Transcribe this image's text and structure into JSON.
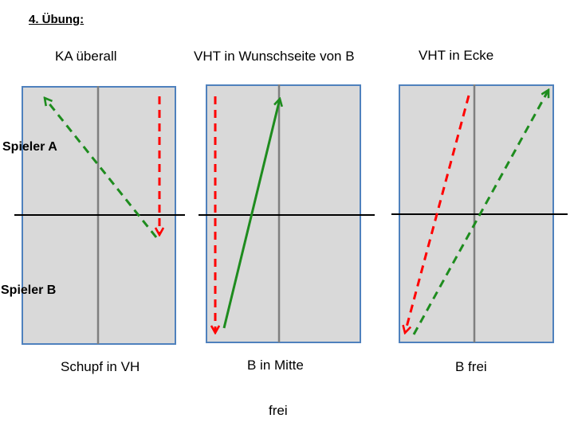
{
  "heading": "4. Übung:",
  "columns": [
    {
      "title": "KA überall",
      "caption": "Schupf in VH"
    },
    {
      "title": "VHT in Wunschseite von B",
      "caption": "B in Mitte"
    },
    {
      "title": "VHT in Ecke",
      "caption": "B frei"
    }
  ],
  "players": {
    "a": "Spieler A",
    "b": "Spieler B"
  },
  "footer": "frei",
  "colors": {
    "table_fill": "#d9d9d9",
    "table_border": "#4f81bd",
    "center_line": "#7f7f7f",
    "net": "#000000",
    "red": "#ff0000",
    "green": "#1e8c1e"
  }
}
